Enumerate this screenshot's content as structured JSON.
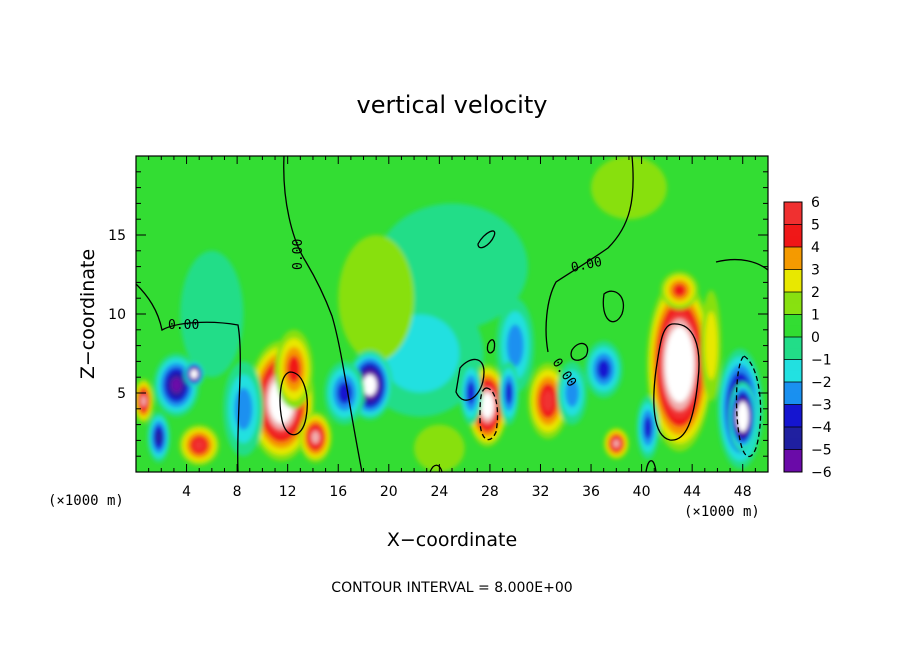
{
  "chart_data": {
    "type": "heatmap",
    "title": "vertical velocity",
    "xlabel": "X−coordinate",
    "ylabel": "Z−coordinate",
    "x_unit_label": "(×1000 m)",
    "y_unit_label": "(×1000 m)",
    "xlim": [
      0,
      50
    ],
    "ylim": [
      0,
      20
    ],
    "x_ticks": [
      4,
      8,
      12,
      16,
      20,
      24,
      28,
      32,
      36,
      40,
      44,
      48
    ],
    "y_ticks": [
      5,
      10,
      15
    ],
    "contour_note": "CONTOUR INTERVAL = 8.000E+00",
    "contour_labels": [
      "0.00",
      "0.00",
      "0.00",
      "0.00"
    ],
    "colorbar": {
      "tick_labels": [
        "6",
        "5",
        "4",
        "3",
        "2",
        "1",
        "0",
        "−1",
        "−2",
        "−3",
        "−4",
        "−5",
        "−6"
      ],
      "range": [
        -6,
        6
      ]
    },
    "colors": {
      "background_field": "#33dd33",
      "max_positive": "#f0b0b0",
      "red": "#f01818",
      "orange": "#f59a00",
      "yellow": "#e8e800",
      "green": "#33dd33",
      "cyan": "#22e0e0",
      "blue": "#1515d0",
      "min_negative": "#6a0ba8",
      "saturated": "#ffffff"
    },
    "cells": [
      {
        "x": 11.5,
        "z": 4.5,
        "rx": 2.6,
        "rz": 3.8,
        "value": 9
      },
      {
        "x": 12.5,
        "z": 6.5,
        "rx": 1.5,
        "rz": 2.5,
        "value": 4
      },
      {
        "x": 14.2,
        "z": 2.2,
        "rx": 1.3,
        "rz": 1.6,
        "value": 6
      },
      {
        "x": 43.0,
        "z": 6.8,
        "rx": 2.6,
        "rz": 5.5,
        "value": 10
      },
      {
        "x": 43.0,
        "z": 11.5,
        "rx": 1.5,
        "rz": 1.2,
        "value": 4
      },
      {
        "x": 27.8,
        "z": 4.2,
        "rx": 1.6,
        "rz": 2.6,
        "value": 8
      },
      {
        "x": 0.6,
        "z": 4.5,
        "rx": 0.8,
        "rz": 1.4,
        "value": 6
      },
      {
        "x": 5.0,
        "z": 1.7,
        "rx": 1.6,
        "rz": 1.3,
        "value": 5
      },
      {
        "x": 32.6,
        "z": 4.5,
        "rx": 1.6,
        "rz": 2.4,
        "value": 5
      },
      {
        "x": 38.0,
        "z": 1.8,
        "rx": 1.0,
        "rz": 1.0,
        "value": 6
      },
      {
        "x": 19.0,
        "z": 11.0,
        "rx": 3.0,
        "rz": 4.0,
        "value": 1
      },
      {
        "x": 3.2,
        "z": 5.5,
        "rx": 1.8,
        "rz": 2.0,
        "value": -6
      },
      {
        "x": 4.6,
        "z": 6.2,
        "rx": 0.8,
        "rz": 0.8,
        "value": -9
      },
      {
        "x": 18.5,
        "z": 5.5,
        "rx": 1.8,
        "rz": 2.2,
        "value": -8
      },
      {
        "x": 16.5,
        "z": 5.0,
        "rx": 1.6,
        "rz": 2.0,
        "value": -4
      },
      {
        "x": 1.8,
        "z": 2.2,
        "rx": 0.9,
        "rz": 1.6,
        "value": -5
      },
      {
        "x": 8.5,
        "z": 4.0,
        "rx": 1.6,
        "rz": 3.0,
        "value": -3
      },
      {
        "x": 47.8,
        "z": 4.0,
        "rx": 1.8,
        "rz": 3.8,
        "value": -7
      },
      {
        "x": 48.0,
        "z": 3.5,
        "rx": 1.1,
        "rz": 2.2,
        "value": -10
      },
      {
        "x": 37.0,
        "z": 6.5,
        "rx": 1.5,
        "rz": 1.8,
        "value": -4
      },
      {
        "x": 40.5,
        "z": 2.8,
        "rx": 0.9,
        "rz": 2.0,
        "value": -4
      },
      {
        "x": 22.5,
        "z": 7.5,
        "rx": 5.0,
        "rz": 4.0,
        "value": -2
      },
      {
        "x": 30.0,
        "z": 8.0,
        "rx": 1.5,
        "rz": 3.0,
        "value": -2.5
      },
      {
        "x": 25.0,
        "z": 13.0,
        "rx": 6.0,
        "rz": 4.0,
        "value": -1
      },
      {
        "x": 26.5,
        "z": 5.0,
        "rx": 0.9,
        "rz": 2.0,
        "value": -4
      },
      {
        "x": 29.5,
        "z": 5.0,
        "rx": 0.8,
        "rz": 2.0,
        "value": -3.5
      },
      {
        "x": 34.5,
        "z": 5.0,
        "rx": 1.2,
        "rz": 2.0,
        "value": -3
      },
      {
        "x": 6.0,
        "z": 10.0,
        "rx": 2.5,
        "rz": 4.0,
        "value": -1
      },
      {
        "x": 24.0,
        "z": 1.5,
        "rx": 2.0,
        "rz": 1.5,
        "value": 1
      },
      {
        "x": 39.0,
        "z": 18.0,
        "rx": 3.0,
        "rz": 2.0,
        "value": 1.5
      },
      {
        "x": 45.5,
        "z": 8.0,
        "rx": 0.8,
        "rz": 3.5,
        "value": 2
      }
    ]
  }
}
